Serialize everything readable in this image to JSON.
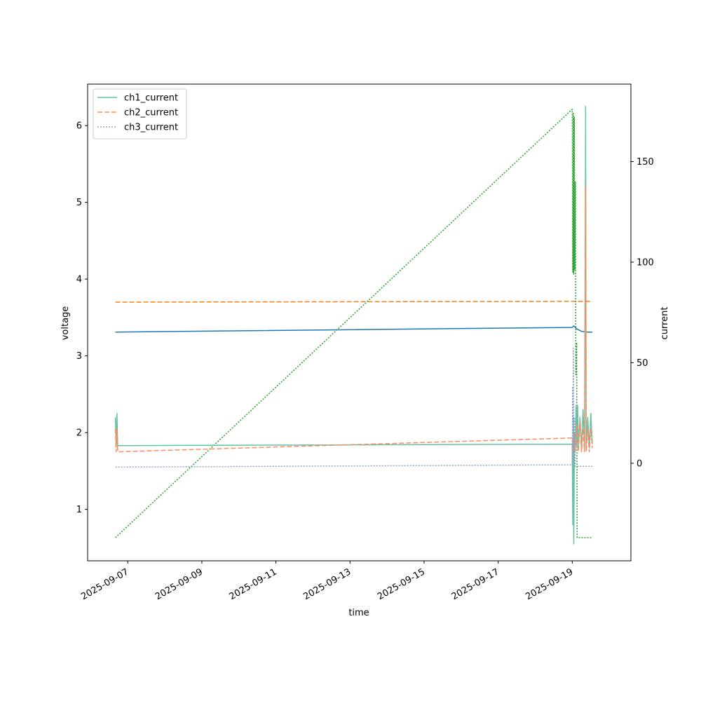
{
  "chart_data": {
    "type": "line",
    "xlabel": "time",
    "ylabel": "voltage",
    "y2label": "current",
    "x_range": [
      "2025-09-05T22:00",
      "2025-09-20T14:00"
    ],
    "x_ticks": [
      "2025-09-07",
      "2025-09-09",
      "2025-09-11",
      "2025-09-13",
      "2025-09-15",
      "2025-09-17",
      "2025-09-19"
    ],
    "ylim": [
      0.33,
      6.54
    ],
    "y_ticks": [
      "1",
      "2",
      "3",
      "4",
      "5",
      "6"
    ],
    "y2lim": [
      -48.5,
      188.5
    ],
    "y2_ticks": [
      "0",
      "50",
      "100",
      "150"
    ],
    "grid": false,
    "legend_position": "top-left",
    "legend": [
      {
        "label": "ch1_current",
        "color": "#66c2a5",
        "dash": "solid"
      },
      {
        "label": "ch2_current",
        "color": "#fc8d62",
        "dash": "dashed"
      },
      {
        "label": "ch3_current",
        "color": "#8da0cb",
        "dash": "dotted"
      }
    ],
    "series": [
      {
        "name": "",
        "axis": "left",
        "color": "#1f77b4",
        "dash": "solid",
        "points": [
          [
            "2025-09-06T16:00",
            3.31
          ],
          [
            "2025-09-19T00:00",
            3.37
          ],
          [
            "2025-09-19T01:00",
            3.39
          ],
          [
            "2025-09-19T03:00",
            3.35
          ],
          [
            "2025-09-19T06:00",
            3.32
          ],
          [
            "2025-09-19T10:00",
            3.31
          ],
          [
            "2025-09-19T13:00",
            3.31
          ]
        ]
      },
      {
        "name": "",
        "axis": "left",
        "color": "#ff7f0e",
        "dash": "dashed",
        "points": [
          [
            "2025-09-06T16:00",
            3.7
          ],
          [
            "2025-09-19T00:00",
            3.71
          ],
          [
            "2025-09-19T13:00",
            3.71
          ]
        ]
      },
      {
        "name": "",
        "axis": "right",
        "color": "#2ca02c",
        "dash": "dotted",
        "points": [
          [
            "2025-09-06T16:00",
            -37
          ],
          [
            "2025-09-19T00:00",
            176
          ],
          [
            "2025-09-19T00:20",
            95
          ],
          [
            "2025-09-19T00:40",
            174
          ],
          [
            "2025-09-19T01:00",
            94
          ],
          [
            "2025-09-19T01:20",
            172
          ],
          [
            "2025-09-19T01:40",
            96
          ],
          [
            "2025-09-19T02:00",
            140
          ],
          [
            "2025-09-19T02:20",
            44
          ],
          [
            "2025-09-19T02:50",
            60
          ],
          [
            "2025-09-19T03:10",
            -37
          ],
          [
            "2025-09-19T13:00",
            -37
          ]
        ]
      },
      {
        "name": "ch1_current",
        "axis": "left",
        "color": "#66c2a5",
        "dash": "solid",
        "points": [
          [
            "2025-09-06T16:00",
            2.2
          ],
          [
            "2025-09-06T16:30",
            1.84
          ],
          [
            "2025-09-06T17:00",
            2.25
          ],
          [
            "2025-09-06T17:30",
            1.83
          ],
          [
            "2025-09-19T00:00",
            1.85
          ],
          [
            "2025-09-19T00:20",
            0.8
          ],
          [
            "2025-09-19T00:40",
            2.2
          ],
          [
            "2025-09-19T01:00",
            0.55
          ],
          [
            "2025-09-19T01:30",
            2.0
          ],
          [
            "2025-09-19T02:00",
            1.8
          ],
          [
            "2025-09-19T02:30",
            2.35
          ],
          [
            "2025-09-19T03:00",
            1.8
          ],
          [
            "2025-09-19T03:30",
            2.35
          ],
          [
            "2025-09-19T04:00",
            1.8
          ],
          [
            "2025-09-19T05:00",
            2.2
          ],
          [
            "2025-09-19T06:00",
            1.8
          ],
          [
            "2025-09-19T07:00",
            2.3
          ],
          [
            "2025-09-19T08:00",
            1.8
          ],
          [
            "2025-09-19T08:40",
            6.25
          ],
          [
            "2025-09-19T09:00",
            1.8
          ],
          [
            "2025-09-19T10:00",
            2.2
          ],
          [
            "2025-09-19T11:00",
            1.8
          ],
          [
            "2025-09-19T12:00",
            2.25
          ],
          [
            "2025-09-19T13:00",
            1.85
          ]
        ]
      },
      {
        "name": "ch2_current",
        "axis": "left",
        "color": "#fc8d62",
        "dash": "dashed",
        "points": [
          [
            "2025-09-06T16:00",
            2.05
          ],
          [
            "2025-09-06T16:30",
            1.75
          ],
          [
            "2025-09-06T17:00",
            2.05
          ],
          [
            "2025-09-06T17:30",
            1.75
          ],
          [
            "2025-09-19T00:00",
            1.93
          ],
          [
            "2025-09-19T00:30",
            1.75
          ],
          [
            "2025-09-19T01:00",
            2.0
          ],
          [
            "2025-09-19T02:00",
            1.75
          ],
          [
            "2025-09-19T03:00",
            2.1
          ],
          [
            "2025-09-19T04:00",
            1.75
          ],
          [
            "2025-09-19T05:00",
            2.15
          ],
          [
            "2025-09-19T06:00",
            1.75
          ],
          [
            "2025-09-19T07:00",
            2.05
          ],
          [
            "2025-09-19T08:00",
            1.75
          ],
          [
            "2025-09-19T08:40",
            5.2
          ],
          [
            "2025-09-19T09:00",
            1.75
          ],
          [
            "2025-09-19T10:00",
            2.05
          ],
          [
            "2025-09-19T11:00",
            1.75
          ],
          [
            "2025-09-19T12:00",
            2.05
          ],
          [
            "2025-09-19T13:00",
            1.8
          ]
        ]
      },
      {
        "name": "ch3_current",
        "axis": "left",
        "color": "#8da0cb",
        "dash": "dotted",
        "points": [
          [
            "2025-09-06T16:00",
            1.55
          ],
          [
            "2025-09-19T00:00",
            1.58
          ],
          [
            "2025-09-19T00:15",
            2.6
          ],
          [
            "2025-09-19T00:30",
            1.8
          ],
          [
            "2025-09-19T00:45",
            3.1
          ],
          [
            "2025-09-19T01:00",
            1.6
          ],
          [
            "2025-09-19T01:30",
            2.2
          ],
          [
            "2025-09-19T02:00",
            1.56
          ],
          [
            "2025-09-19T13:00",
            1.56
          ]
        ]
      }
    ]
  }
}
